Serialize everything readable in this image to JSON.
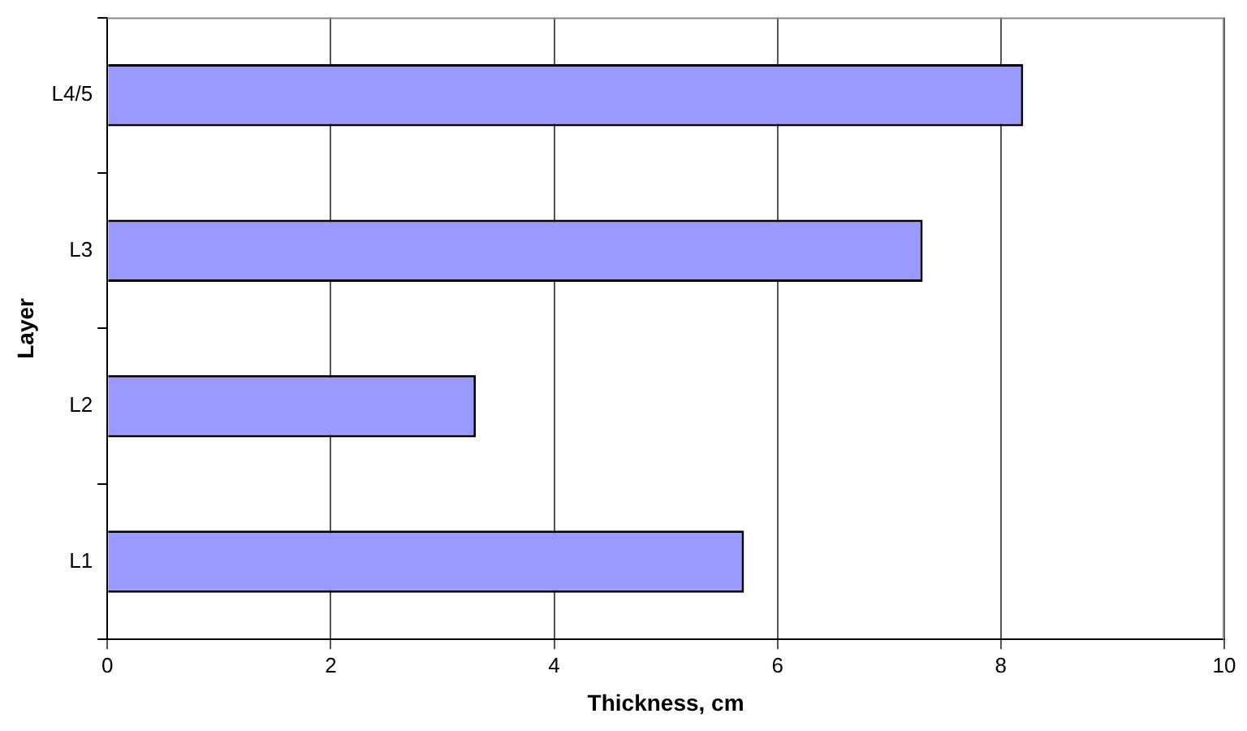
{
  "chart_data": {
    "type": "bar",
    "orientation": "horizontal",
    "xlabel": "Thickness, cm",
    "ylabel": "Layer",
    "categories": [
      "L4/5",
      "L3",
      "L2",
      "L1"
    ],
    "values": [
      8.2,
      7.3,
      3.3,
      5.7
    ],
    "color": "#9999ff",
    "xlim": [
      0,
      10
    ],
    "xticks": [
      0,
      2,
      4,
      6,
      8,
      10
    ],
    "grid": "x",
    "legend": false
  }
}
